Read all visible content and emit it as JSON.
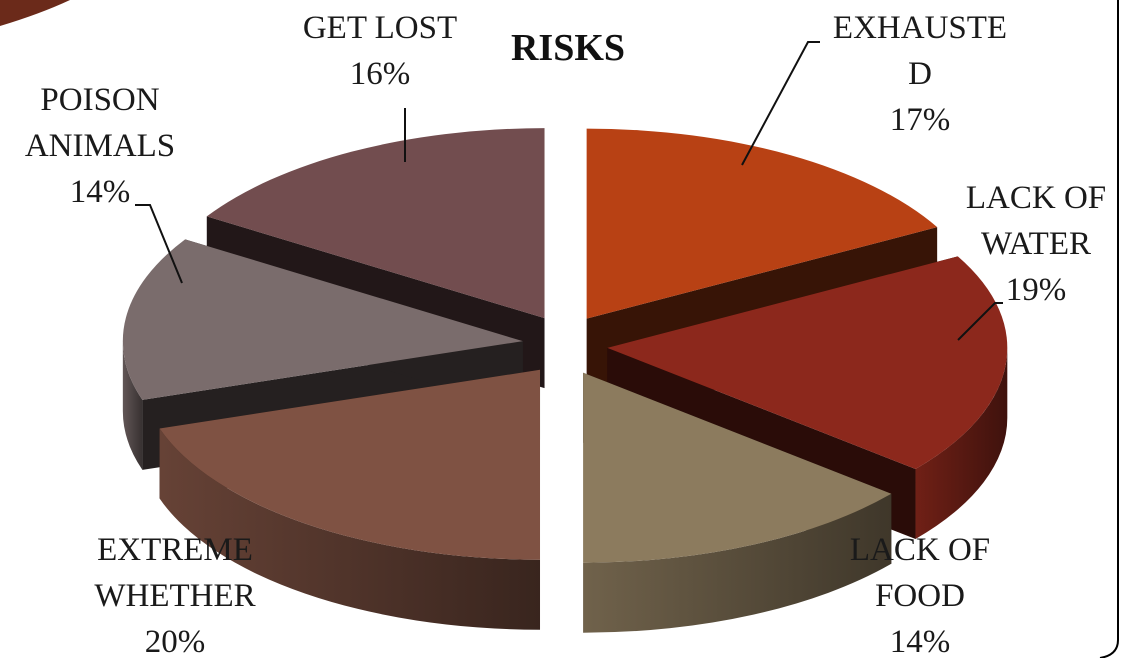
{
  "chart_data": {
    "type": "pie",
    "title": "RISKS",
    "slices": [
      {
        "label": [
          "EXHAUSTE",
          "D"
        ],
        "value": 17,
        "percent_label": "17%",
        "color": "#b84114"
      },
      {
        "label": [
          "LACK OF",
          "WATER"
        ],
        "value": 19,
        "percent_label": "19%",
        "color": "#8c281c"
      },
      {
        "label": [
          "LACK OF",
          "FOOD"
        ],
        "value": 14,
        "percent_label": "14%",
        "color": "#8c7b5e"
      },
      {
        "label": [
          "EXTREME",
          "WHETHER"
        ],
        "value": 20,
        "percent_label": "20%",
        "color": "#7f5243"
      },
      {
        "label": [
          "POISON",
          "ANIMALS"
        ],
        "value": 14,
        "percent_label": "14%",
        "color": "#7a6c6c"
      },
      {
        "label": [
          "GET LOST"
        ],
        "value": 16,
        "percent_label": "16%",
        "color": "#724d4f"
      }
    ],
    "exploded": true,
    "legend": "none"
  }
}
